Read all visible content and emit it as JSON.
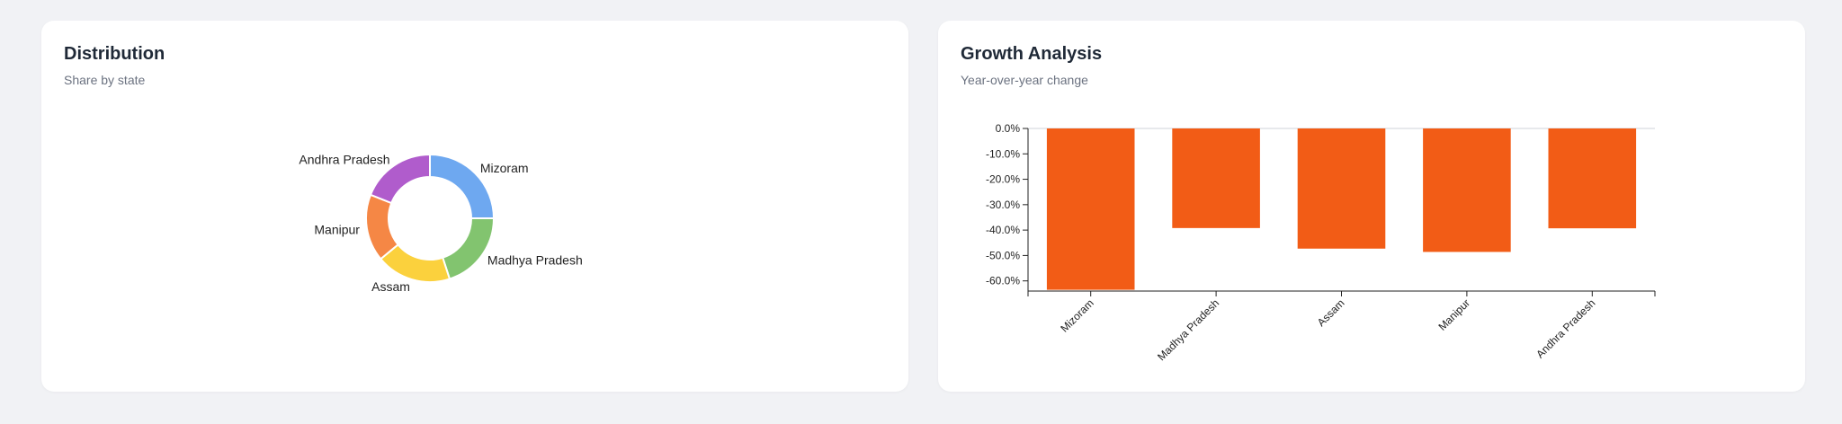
{
  "distribution_card": {
    "title": "Distribution",
    "subtitle": "Share by state"
  },
  "growth_card": {
    "title": "Growth Analysis",
    "subtitle": "Year-over-year change"
  },
  "chart_data": [
    {
      "type": "pie",
      "variant": "donut",
      "title": "Distribution",
      "subtitle": "Share by state",
      "categories": [
        "Mizoram",
        "Madhya Pradesh",
        "Assam",
        "Manipur",
        "Andhra Pradesh"
      ],
      "values": [
        25,
        20,
        19,
        17,
        19
      ],
      "colors": [
        "#6ea8f0",
        "#82c46f",
        "#fbd13d",
        "#f58745",
        "#b05ccc"
      ],
      "legend": "none"
    },
    {
      "type": "bar",
      "title": "Growth Analysis",
      "subtitle": "Year-over-year change",
      "categories": [
        "Mizoram",
        "Madhya Pradesh",
        "Assam",
        "Manipur",
        "Andhra Pradesh"
      ],
      "values": [
        -63.5,
        -39.2,
        -47.3,
        -48.6,
        -39.3
      ],
      "ylim": [
        -64,
        0
      ],
      "yticks": [
        0,
        -10,
        -20,
        -30,
        -40,
        -50,
        -60
      ],
      "ytick_format": "0.0%",
      "color": "#f25c16",
      "xlabel": "",
      "ylabel": "",
      "grid": false,
      "legend": "none"
    }
  ]
}
